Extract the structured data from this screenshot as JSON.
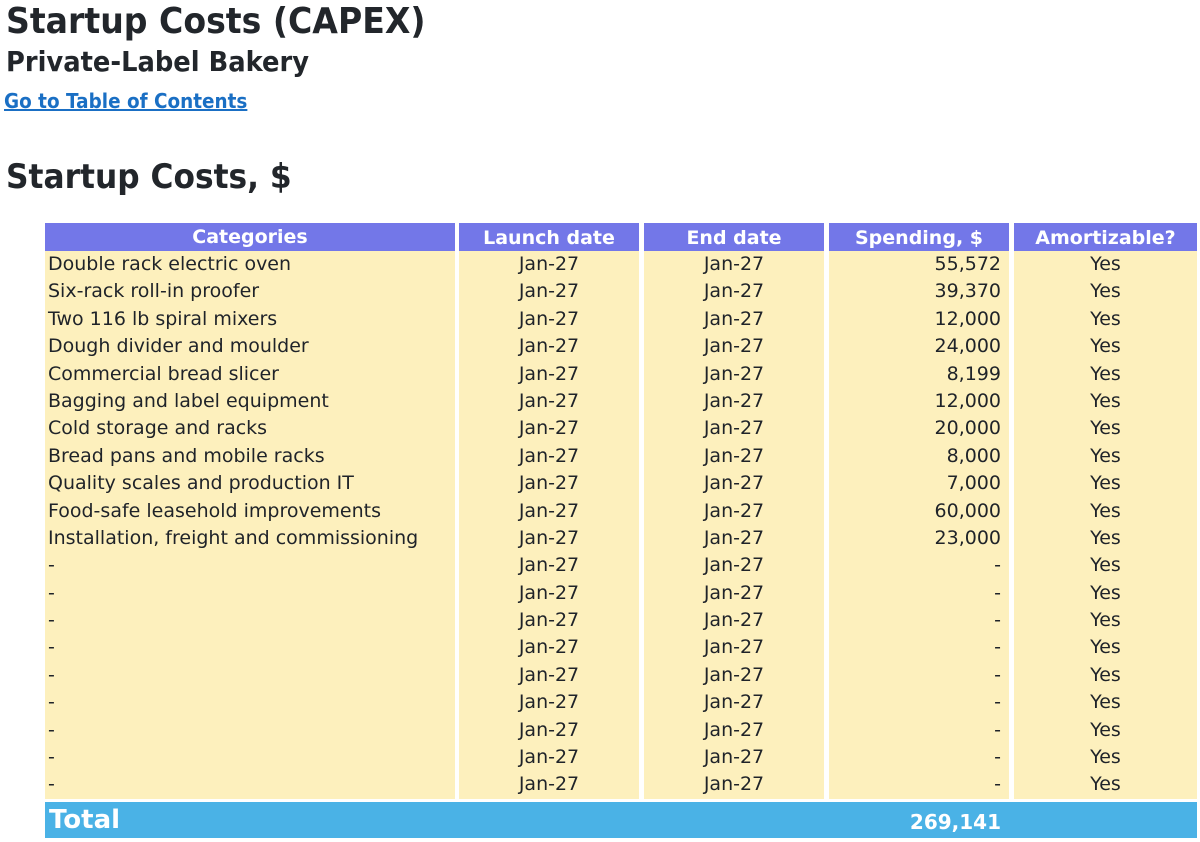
{
  "page": {
    "title": "Startup Costs (CAPEX)",
    "subtitle": "Private-Label Bakery",
    "toc_link": "Go to Table of Contents",
    "section_title": "Startup Costs, $"
  },
  "colors": {
    "header_bg": "#7377e8",
    "row_bg": "#fdf0bd",
    "total_bg": "#4ab2e6",
    "link": "#1a6fc4"
  },
  "table": {
    "headers": {
      "categories": "Categories",
      "launch_date": "Launch date",
      "end_date": "End date",
      "spending": "Spending, $",
      "amortizable": "Amortizable?"
    },
    "rows": [
      {
        "category": "Double rack electric oven",
        "launch": "Jan-27",
        "end": "Jan-27",
        "spending": "55,572",
        "amortizable": "Yes"
      },
      {
        "category": "Six-rack roll-in proofer",
        "launch": "Jan-27",
        "end": "Jan-27",
        "spending": "39,370",
        "amortizable": "Yes"
      },
      {
        "category": "Two 116 lb spiral mixers",
        "launch": "Jan-27",
        "end": "Jan-27",
        "spending": "12,000",
        "amortizable": "Yes"
      },
      {
        "category": "Dough divider and moulder",
        "launch": "Jan-27",
        "end": "Jan-27",
        "spending": "24,000",
        "amortizable": "Yes"
      },
      {
        "category": "Commercial bread slicer",
        "launch": "Jan-27",
        "end": "Jan-27",
        "spending": "8,199",
        "amortizable": "Yes"
      },
      {
        "category": "Bagging and label equipment",
        "launch": "Jan-27",
        "end": "Jan-27",
        "spending": "12,000",
        "amortizable": "Yes"
      },
      {
        "category": "Cold storage and racks",
        "launch": "Jan-27",
        "end": "Jan-27",
        "spending": "20,000",
        "amortizable": "Yes"
      },
      {
        "category": "Bread pans and mobile racks",
        "launch": "Jan-27",
        "end": "Jan-27",
        "spending": "8,000",
        "amortizable": "Yes"
      },
      {
        "category": "Quality scales and production IT",
        "launch": "Jan-27",
        "end": "Jan-27",
        "spending": "7,000",
        "amortizable": "Yes"
      },
      {
        "category": "Food-safe leasehold improvements",
        "launch": "Jan-27",
        "end": "Jan-27",
        "spending": "60,000",
        "amortizable": "Yes"
      },
      {
        "category": "Installation, freight and commissioning",
        "launch": "Jan-27",
        "end": "Jan-27",
        "spending": "23,000",
        "amortizable": "Yes"
      },
      {
        "category": "-",
        "launch": "Jan-27",
        "end": "Jan-27",
        "spending": "-",
        "amortizable": "Yes"
      },
      {
        "category": "-",
        "launch": "Jan-27",
        "end": "Jan-27",
        "spending": "-",
        "amortizable": "Yes"
      },
      {
        "category": "-",
        "launch": "Jan-27",
        "end": "Jan-27",
        "spending": "-",
        "amortizable": "Yes"
      },
      {
        "category": "-",
        "launch": "Jan-27",
        "end": "Jan-27",
        "spending": "-",
        "amortizable": "Yes"
      },
      {
        "category": "-",
        "launch": "Jan-27",
        "end": "Jan-27",
        "spending": "-",
        "amortizable": "Yes"
      },
      {
        "category": "-",
        "launch": "Jan-27",
        "end": "Jan-27",
        "spending": "-",
        "amortizable": "Yes"
      },
      {
        "category": "-",
        "launch": "Jan-27",
        "end": "Jan-27",
        "spending": "-",
        "amortizable": "Yes"
      },
      {
        "category": "-",
        "launch": "Jan-27",
        "end": "Jan-27",
        "spending": "-",
        "amortizable": "Yes"
      },
      {
        "category": "-",
        "launch": "Jan-27",
        "end": "Jan-27",
        "spending": "-",
        "amortizable": "Yes"
      }
    ],
    "total": {
      "label": "Total",
      "spending": "269,141"
    }
  }
}
